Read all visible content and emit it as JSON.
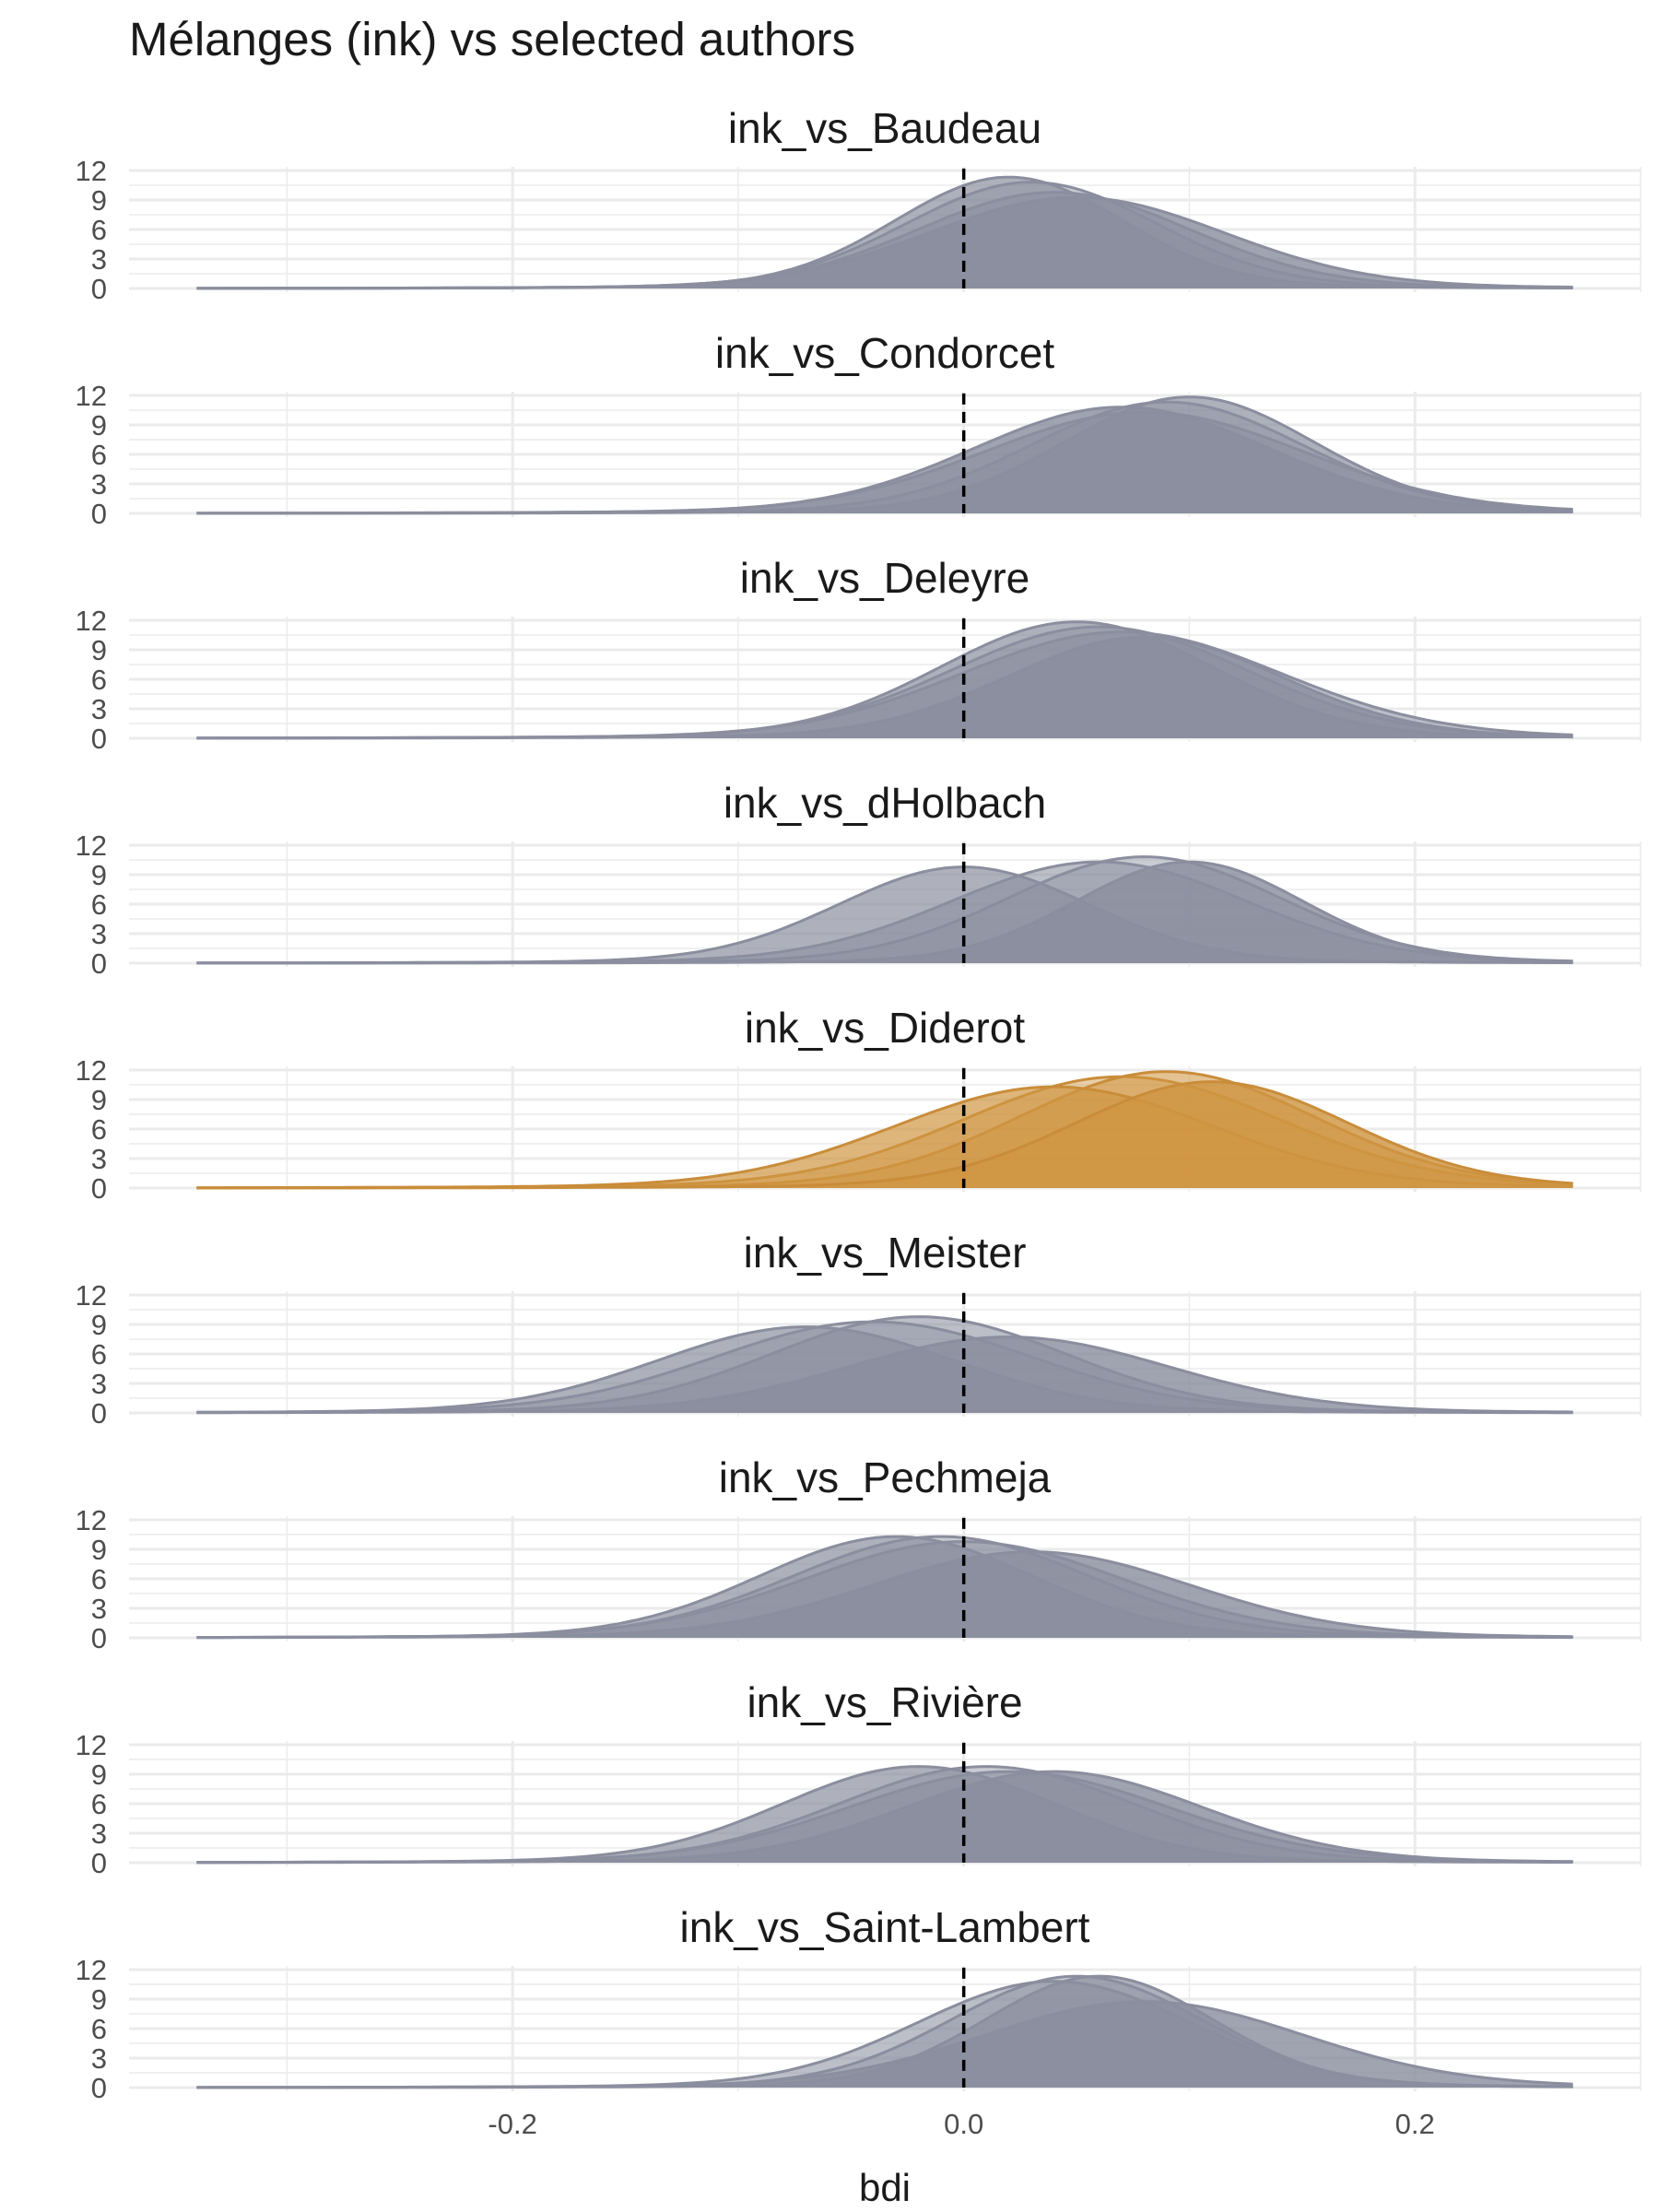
{
  "chart_data": {
    "type": "area",
    "title": "Mélanges (ink) vs selected authors",
    "xlabel": "bdi",
    "ylabel": "",
    "xlim": [
      -0.37,
      0.3
    ],
    "ylim": [
      0,
      12
    ],
    "x_ticks": [
      -0.2,
      0.0,
      0.2
    ],
    "x_tick_labels": [
      "-0.2",
      "0.0",
      "0.2"
    ],
    "y_ticks": [
      0,
      3,
      6,
      9,
      12
    ],
    "y_tick_labels": [
      "0",
      "3",
      "6",
      "9",
      "12"
    ],
    "reference_line": {
      "x": 0.0,
      "style": "dashed",
      "color": "#000000"
    },
    "grid": true,
    "colors": {
      "default_fill": "#8a8e9e",
      "highlight_fill": "#cf9541",
      "highlight_line": "#c98d3a"
    },
    "panels": [
      {
        "name": "ink_vs_Baudeau",
        "highlight": false,
        "x_range": [
          -0.34,
          0.27
        ],
        "series": [
          {
            "center": 0.03,
            "sd": 0.055,
            "peak": 10.5
          },
          {
            "center": 0.04,
            "sd": 0.06,
            "peak": 9.5
          },
          {
            "center": 0.02,
            "sd": 0.05,
            "peak": 11.0
          },
          {
            "center": 0.05,
            "sd": 0.065,
            "peak": 9.0
          }
        ]
      },
      {
        "name": "ink_vs_Condorcet",
        "highlight": false,
        "x_range": [
          -0.34,
          0.27
        ],
        "series": [
          {
            "center": 0.09,
            "sd": 0.06,
            "peak": 11.0
          },
          {
            "center": 0.08,
            "sd": 0.07,
            "peak": 10.0
          },
          {
            "center": 0.1,
            "sd": 0.055,
            "peak": 11.5
          },
          {
            "center": 0.07,
            "sd": 0.065,
            "peak": 10.5
          }
        ]
      },
      {
        "name": "ink_vs_Deleyre",
        "highlight": false,
        "x_range": [
          -0.34,
          0.27
        ],
        "series": [
          {
            "center": 0.06,
            "sd": 0.065,
            "peak": 11.0
          },
          {
            "center": 0.07,
            "sd": 0.07,
            "peak": 10.5
          },
          {
            "center": 0.05,
            "sd": 0.06,
            "peak": 11.5
          },
          {
            "center": 0.08,
            "sd": 0.06,
            "peak": 10.0
          }
        ]
      },
      {
        "name": "ink_vs_dHolbach",
        "highlight": false,
        "x_range": [
          -0.34,
          0.27
        ],
        "series": [
          {
            "center": 0.08,
            "sd": 0.06,
            "peak": 10.5
          },
          {
            "center": 0.06,
            "sd": 0.065,
            "peak": 10.0
          },
          {
            "center": 0.0,
            "sd": 0.055,
            "peak": 9.5
          },
          {
            "center": 0.1,
            "sd": 0.05,
            "peak": 10.0
          }
        ]
      },
      {
        "name": "ink_vs_Diderot",
        "highlight": true,
        "x_range": [
          -0.34,
          0.27
        ],
        "series": [
          {
            "center": 0.07,
            "sd": 0.07,
            "peak": 11.0
          },
          {
            "center": 0.09,
            "sd": 0.065,
            "peak": 11.5
          },
          {
            "center": 0.04,
            "sd": 0.07,
            "peak": 10.0
          },
          {
            "center": 0.11,
            "sd": 0.06,
            "peak": 10.5
          }
        ]
      },
      {
        "name": "ink_vs_Meister",
        "highlight": false,
        "x_range": [
          -0.34,
          0.27
        ],
        "series": [
          {
            "center": -0.04,
            "sd": 0.07,
            "peak": 9.0
          },
          {
            "center": -0.02,
            "sd": 0.065,
            "peak": 9.5
          },
          {
            "center": -0.07,
            "sd": 0.065,
            "peak": 8.5
          },
          {
            "center": 0.02,
            "sd": 0.07,
            "peak": 7.5
          }
        ]
      },
      {
        "name": "ink_vs_Pechmeja",
        "highlight": false,
        "x_range": [
          -0.34,
          0.27
        ],
        "series": [
          {
            "center": -0.01,
            "sd": 0.065,
            "peak": 10.0
          },
          {
            "center": 0.0,
            "sd": 0.07,
            "peak": 9.5
          },
          {
            "center": -0.03,
            "sd": 0.06,
            "peak": 10.0
          },
          {
            "center": 0.03,
            "sd": 0.07,
            "peak": 8.5
          }
        ]
      },
      {
        "name": "ink_vs_Rivière",
        "highlight": false,
        "x_range": [
          -0.34,
          0.27
        ],
        "series": [
          {
            "center": 0.01,
            "sd": 0.065,
            "peak": 9.5
          },
          {
            "center": 0.02,
            "sd": 0.07,
            "peak": 9.0
          },
          {
            "center": -0.02,
            "sd": 0.06,
            "peak": 9.5
          },
          {
            "center": 0.04,
            "sd": 0.065,
            "peak": 9.0
          }
        ]
      },
      {
        "name": "ink_vs_Saint-Lambert",
        "highlight": false,
        "x_range": [
          -0.34,
          0.27
        ],
        "series": [
          {
            "center": 0.05,
            "sd": 0.055,
            "peak": 11.0
          },
          {
            "center": 0.04,
            "sd": 0.06,
            "peak": 10.5
          },
          {
            "center": 0.06,
            "sd": 0.05,
            "peak": 11.0
          },
          {
            "center": 0.08,
            "sd": 0.07,
            "peak": 8.5
          }
        ]
      }
    ]
  }
}
